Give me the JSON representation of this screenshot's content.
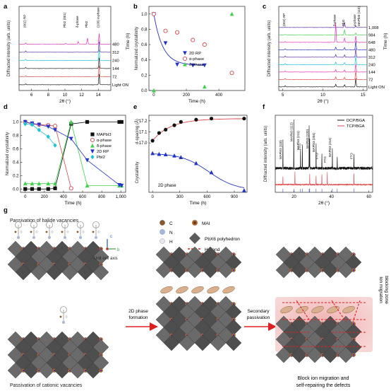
{
  "panels": [
    {
      "id": "a",
      "label": "a"
    },
    {
      "id": "b",
      "label": "b"
    },
    {
      "id": "c",
      "label": "c"
    },
    {
      "id": "d",
      "label": "d"
    },
    {
      "id": "e",
      "label": "e"
    },
    {
      "id": "f",
      "label": "f"
    },
    {
      "id": "g",
      "label": "g"
    }
  ],
  "colors": {
    "purple": "#5a2aa0",
    "magenta": "#e830b8",
    "cyan": "#19c3d8",
    "black": "#111111",
    "red": "#e0464a",
    "green": "#3ed24a",
    "blue": "#2233cc",
    "pbGray": "#5c5c5c",
    "ma": "#b0703a",
    "hbond": "#e02020"
  },
  "chart_data": [
    {
      "panel": "a",
      "type": "line",
      "xlabel": "2θ (°)",
      "ylabel": "Diffracted intensity (arb. units)",
      "xlim": [
        4.5,
        15.5
      ],
      "xticks": [
        6,
        8,
        10,
        12,
        14
      ],
      "right_label": "Time (h)",
      "series": [
        {
          "name": "480",
          "color": "#e830b8",
          "offset": 5,
          "peaks": [
            [
              5.3,
              0.3
            ],
            [
              10.1,
              0.2
            ],
            [
              11.6,
              0.6
            ],
            [
              12.7,
              1.4
            ],
            [
              14.1,
              2.5
            ]
          ]
        },
        {
          "name": "312",
          "color": "#5a2aa0",
          "offset": 4,
          "peaks": [
            [
              5.3,
              0.3
            ],
            [
              14.1,
              2.5
            ]
          ]
        },
        {
          "name": "240",
          "color": "#19c3d8",
          "offset": 3,
          "peaks": [
            [
              5.3,
              0.25
            ],
            [
              14.1,
              2.5
            ]
          ]
        },
        {
          "name": "144",
          "color": "#222222",
          "offset": 2,
          "peaks": [
            [
              5.3,
              0.25
            ],
            [
              14.1,
              2.5
            ]
          ]
        },
        {
          "name": "72",
          "color": "#e0464a",
          "offset": 1,
          "peaks": [
            [
              5.3,
              0.2
            ],
            [
              14.1,
              2.5
            ]
          ]
        },
        {
          "name": "Light ON",
          "color": "#111111",
          "offset": 0,
          "peaks": [
            [
              5.3,
              0.2
            ],
            [
              14.1,
              2.5
            ]
          ]
        }
      ],
      "annotations": [
        "(002) RP",
        "PbI2 (001)",
        "δ-phase",
        "PbI2",
        "(100) α-phase"
      ]
    },
    {
      "panel": "b",
      "type": "scatter",
      "xlabel": "Time (h)",
      "ylabel": "Normalized crystallinity",
      "xlim": [
        -30,
        560
      ],
      "ylim": [
        0,
        1.1
      ],
      "xticks": [
        0,
        200,
        400
      ],
      "yticks": [
        0,
        0.2,
        0.4,
        0.6,
        0.8,
        1.0
      ],
      "series": [
        {
          "name": "2D RP",
          "color": "#2233cc",
          "marker": "triangle-down",
          "x": [
            0,
            72,
            144,
            240,
            312
          ],
          "y": [
            1.0,
            0.62,
            0.34,
            0.33,
            0.33
          ]
        },
        {
          "name": "α-phase",
          "color": "#e0464a",
          "marker": "circle-open",
          "x": [
            0,
            72,
            144,
            240,
            312,
            480
          ],
          "y": [
            1.0,
            0.78,
            0.76,
            0.66,
            0.6,
            0.23
          ]
        },
        {
          "name": "δ-phase",
          "color": "#3ed24a",
          "marker": "triangle",
          "x": [
            0,
            312,
            480
          ],
          "y": [
            0.0,
            0.05,
            1.0
          ]
        }
      ]
    },
    {
      "panel": "c",
      "type": "line",
      "xlabel": "2θ (°)",
      "ylabel": "Diffracted intensity (arb. units)",
      "xlim": [
        4.5,
        15.5
      ],
      "xticks": [
        5,
        10,
        15
      ],
      "right_label": "Time (h)",
      "series": [
        {
          "name": "1,008",
          "color": "#5a2aa0",
          "offset": 9
        },
        {
          "name": "984",
          "color": "#3ed24a",
          "offset": 8
        },
        {
          "name": "648",
          "color": "#e830b8",
          "offset": 7
        },
        {
          "name": "480",
          "color": "#2233cc",
          "offset": 6
        },
        {
          "name": "312",
          "color": "#5a2aa0",
          "offset": 5
        },
        {
          "name": "240",
          "color": "#19c3d8",
          "offset": 4
        },
        {
          "name": "144",
          "color": "#e830b8",
          "offset": 3
        },
        {
          "name": "72",
          "color": "#e0464a",
          "offset": 2
        },
        {
          "name": "Light ON",
          "color": "#111111",
          "offset": 1
        }
      ],
      "annotations": [
        "(002) RP",
        "δ-phase",
        "PbI2",
        "α-phase",
        "MAPbI3 (110)"
      ]
    },
    {
      "panel": "d",
      "type": "scatter",
      "xlabel": "Time (h)",
      "ylabel": "Normalized crystallinity",
      "xlim": [
        -50,
        1050
      ],
      "ylim": [
        -0.05,
        1.1
      ],
      "xticks": [
        0,
        200,
        400,
        600,
        800,
        1000
      ],
      "yticks": [
        0,
        0.2,
        0.4,
        0.6,
        0.8,
        1.0
      ],
      "series": [
        {
          "name": "MAPbI3",
          "color": "#111111",
          "marker": "square",
          "x": [
            0,
            72,
            144,
            240,
            312,
            480,
            648,
            984,
            1008
          ],
          "y": [
            0.0,
            0.0,
            0.0,
            0.0,
            0.01,
            0.97,
            1.0,
            1.0,
            1.0
          ]
        },
        {
          "name": "α-phase",
          "color": "#e0464a",
          "marker": "circle-open",
          "x": [
            0,
            72,
            144,
            240,
            312,
            480
          ],
          "y": [
            1.0,
            0.97,
            0.96,
            0.95,
            0.94,
            0.01
          ]
        },
        {
          "name": "δ-phase",
          "color": "#3ed24a",
          "marker": "triangle",
          "x": [
            0,
            72,
            144,
            240,
            312,
            480,
            648,
            984,
            1008
          ],
          "y": [
            0.08,
            0.08,
            0.08,
            0.08,
            0.08,
            1.0,
            0.05,
            0.05,
            0.05
          ]
        },
        {
          "name": "2D RP",
          "color": "#2233cc",
          "marker": "triangle-down",
          "x": [
            0,
            72,
            144,
            240,
            312,
            480,
            648,
            984,
            1008
          ],
          "y": [
            1.0,
            0.98,
            0.96,
            0.93,
            0.88,
            0.75,
            0.43,
            0.06,
            0.05
          ]
        },
        {
          "name": "PbI2",
          "color": "#19c3d8",
          "marker": "diamond",
          "x": [
            0,
            72,
            144,
            240,
            312
          ],
          "y": [
            0.97,
            0.96,
            0.88,
            0.78,
            0.65
          ]
        }
      ]
    },
    {
      "panel": "e",
      "type": "scatter",
      "xlabel": "Time (h)",
      "ylabel": "Crystallinity",
      "ylabel2": "d-spacing (Å)",
      "xlim": [
        -40,
        1040
      ],
      "xticks": [
        0,
        300,
        600,
        900
      ],
      "dspacing_ylim": [
        16.95,
        17.25
      ],
      "dspacing_yticks": [
        17.0,
        17.1,
        17.2
      ],
      "inset_label": "2D phase",
      "series": [
        {
          "name": "d-spacing",
          "color": "#111111",
          "marker": "circle",
          "x": [
            0,
            72,
            144,
            240,
            312,
            480,
            648,
            1008
          ],
          "y": [
            17.02,
            17.09,
            17.12,
            17.16,
            17.19,
            17.21,
            17.22,
            17.22
          ]
        },
        {
          "name": "2D phase",
          "color": "#2233cc",
          "marker": "triangle",
          "x": [
            0,
            72,
            144,
            240,
            312,
            480,
            648,
            1008
          ],
          "y": [
            0.98,
            0.96,
            0.95,
            0.92,
            0.88,
            0.73,
            0.5,
            0.05
          ]
        }
      ]
    },
    {
      "panel": "f",
      "type": "line",
      "xlabel": "2θ (°)",
      "ylabel": "Diffracted intensity (arb. units)",
      "xlim": [
        10,
        62
      ],
      "xticks": [
        20,
        40,
        60
      ],
      "legend": "top-right",
      "series": [
        {
          "name": "DCP/BGA",
          "color": "#111111",
          "offset": 1,
          "peaks": [
            [
              14.1,
              0.6
            ],
            [
              19.9,
              1.0
            ],
            [
              23.5,
              0.4
            ],
            [
              24.5,
              0.5
            ],
            [
              28.1,
              0.9
            ],
            [
              28.4,
              0.6
            ],
            [
              31.8,
              0.5
            ],
            [
              34.9,
              0.3
            ],
            [
              40.5,
              0.4
            ],
            [
              43.1,
              0.25
            ],
            [
              52,
              0.3
            ]
          ]
        },
        {
          "name": "TCP/BGA",
          "color": "#e0464a",
          "offset": 0,
          "peaks": [
            [
              14.1,
              0.4
            ],
            [
              20.5,
              0.6
            ],
            [
              28.4,
              0.5
            ],
            [
              31.8,
              0.4
            ],
            [
              34.9,
              0.5
            ],
            [
              37.8,
              0.6
            ],
            [
              52,
              0.5
            ]
          ]
        }
      ],
      "annotations": [
        "MAPbI3 (110)",
        "MAPbI3 (112)",
        "MAPbI3 (211)",
        "FTO",
        "MAPbI3 (220)",
        "MAPbI3 (204)",
        "FTO",
        "MAPbI3 (314)",
        "FTO",
        "FTO"
      ]
    }
  ],
  "diagram_g": {
    "left_top_caption": "Passivation of halide vacancies",
    "left_bottom_caption": "Passivation of cationic vacancies",
    "legend": {
      "c": "C",
      "n": "N",
      "h": "H",
      "ma": "MAI",
      "pb": "PbX6 polyhedron",
      "hbond": "H-bond",
      "axis_c": "c",
      "axis_b": "b",
      "unit_cell": "Unit cell axis"
    },
    "arrow1": "2D phase formation",
    "arrow2": "Secondary passivation",
    "zone": "Ion migration blocking zone",
    "caption": "Block ion migration and self-repairing the defects"
  }
}
